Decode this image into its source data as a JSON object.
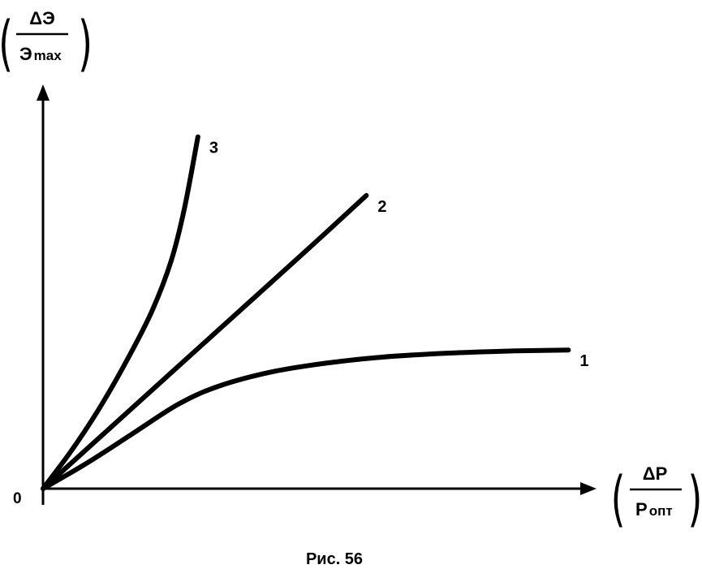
{
  "chart_data": {
    "type": "line",
    "title": "",
    "caption": "Рис. 56",
    "origin_label": "0",
    "y_axis": {
      "numerator": "ΔЭ",
      "denominator_main": "Э",
      "denominator_sub": "max"
    },
    "x_axis": {
      "numerator": "ΔP",
      "denominator_main": "P",
      "denominator_sub": "опт"
    },
    "xlim": [
      0,
      1
    ],
    "ylim": [
      0,
      1
    ],
    "grid": false,
    "legend": "none",
    "series": [
      {
        "name": "1",
        "points": [
          [
            0,
            0
          ],
          [
            0.065,
            0.056
          ],
          [
            0.13,
            0.118
          ],
          [
            0.2,
            0.185
          ],
          [
            0.26,
            0.225
          ],
          [
            0.34,
            0.257
          ],
          [
            0.42,
            0.276
          ],
          [
            0.5,
            0.289
          ],
          [
            0.6,
            0.298
          ],
          [
            0.7,
            0.303
          ],
          [
            0.78,
            0.305
          ]
        ]
      },
      {
        "name": "2",
        "points": [
          [
            0,
            0
          ],
          [
            0.1,
            0.134
          ],
          [
            0.2,
            0.268
          ],
          [
            0.3,
            0.402
          ],
          [
            0.4,
            0.536
          ],
          [
            0.48,
            0.645
          ]
        ]
      },
      {
        "name": "3",
        "points": [
          [
            0,
            0
          ],
          [
            0.04,
            0.079
          ],
          [
            0.08,
            0.168
          ],
          [
            0.12,
            0.27
          ],
          [
            0.16,
            0.385
          ],
          [
            0.19,
            0.5
          ],
          [
            0.21,
            0.617
          ],
          [
            0.23,
            0.774
          ]
        ]
      }
    ]
  }
}
